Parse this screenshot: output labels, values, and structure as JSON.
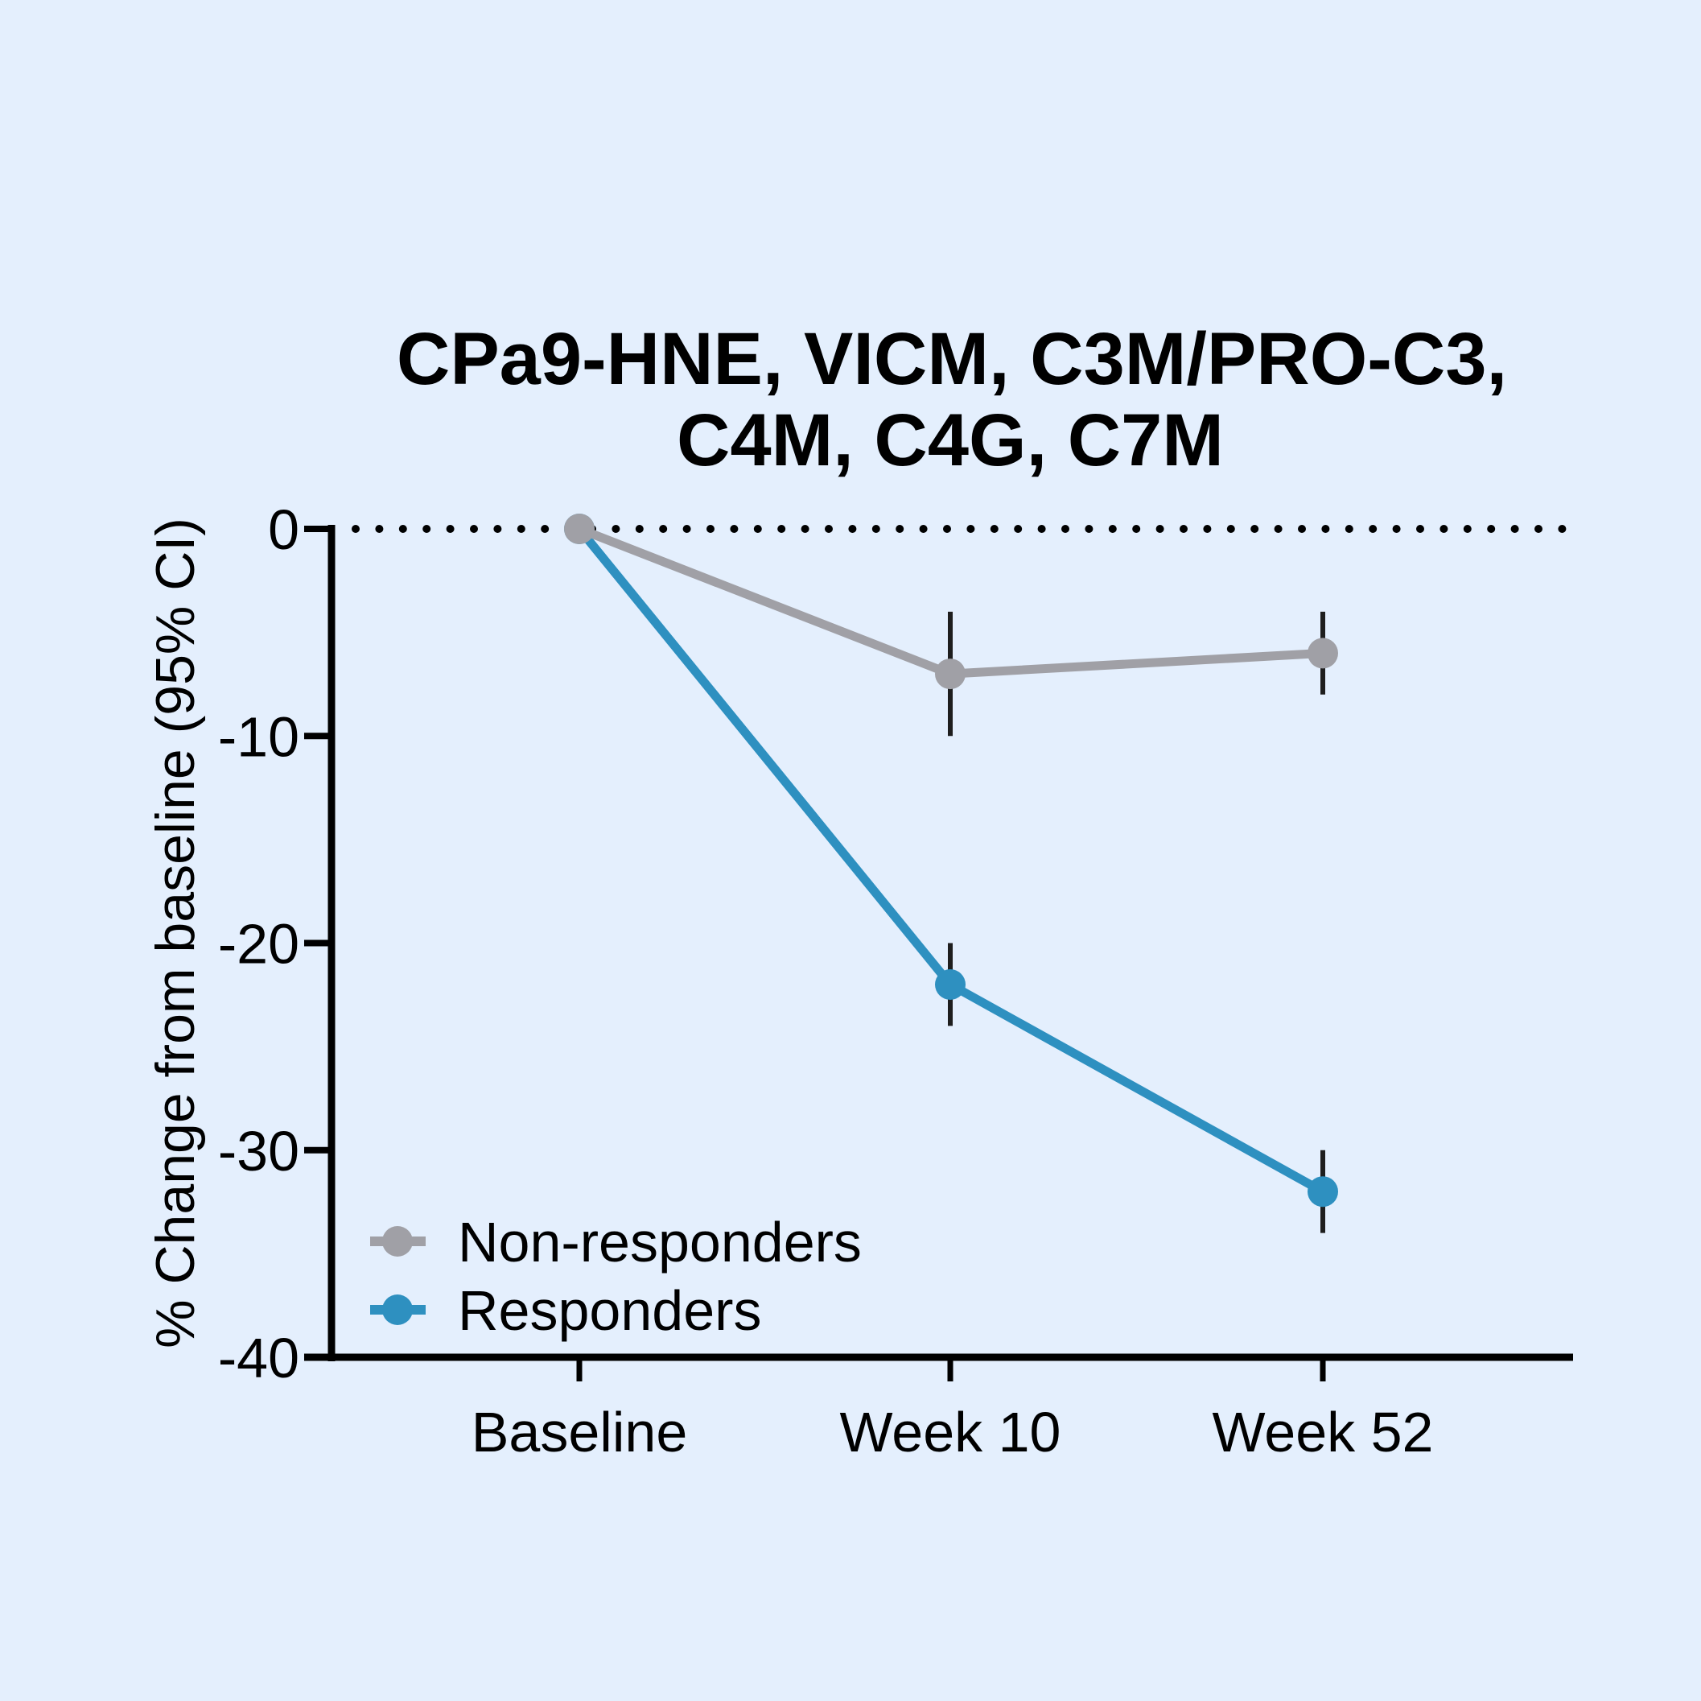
{
  "chart_data": {
    "type": "line",
    "title": [
      "CPa9-HNE, VICM, C3M/PRO-C3,",
      "C4M, C4G, C7M"
    ],
    "xlabel": "",
    "ylabel": "% Change from baseline (95% CI)",
    "categories": [
      "Baseline",
      "Week 10",
      "Week 52"
    ],
    "ylim": [
      -40,
      0
    ],
    "yticks": [
      0,
      -10,
      -20,
      -30,
      -40
    ],
    "ytick_labels": [
      "0",
      "-10",
      "-20",
      "-30",
      "-40"
    ],
    "reference_line": {
      "y": 0,
      "style": "dotted"
    },
    "legend_position": "bottom-left",
    "series": [
      {
        "name": "Responders",
        "color": "#2e90c0",
        "values": [
          0,
          -22,
          -32
        ],
        "ci_upper": [
          null,
          -20,
          -30
        ],
        "ci_lower": [
          null,
          -24,
          -34
        ]
      },
      {
        "name": "Non-responders",
        "color": "#a0a0a6",
        "values": [
          0,
          -7,
          -6
        ],
        "ci_upper": [
          null,
          -4,
          -4
        ],
        "ci_lower": [
          null,
          -10,
          -8
        ]
      }
    ],
    "legend": [
      "Non-responders",
      "Responders"
    ]
  }
}
